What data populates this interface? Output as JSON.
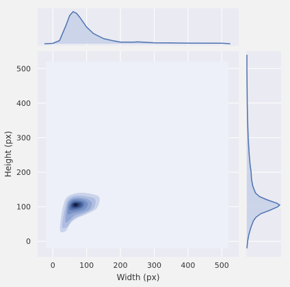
{
  "chart_data": {
    "type": "jointplot-kde",
    "xlabel": "Width (px)",
    "ylabel": "Height (px)",
    "xlim": [
      -45,
      550
    ],
    "ylim": [
      -45,
      550
    ],
    "x_ticks": [
      0,
      100,
      200,
      300,
      400,
      500
    ],
    "y_ticks": [
      0,
      100,
      200,
      300,
      400,
      500
    ],
    "grid": true,
    "colors": {
      "line": "#4c72b0",
      "fill": "#c5d0e7",
      "axes_bg": "#eaeaf2",
      "joint_bg": "#edf0f8",
      "grid": "#ffffff",
      "figure_bg": "#f2f2f2"
    },
    "joint_density": {
      "center": [
        65,
        105
      ],
      "levels": [
        {
          "level": 1,
          "points": [
            [
              22,
              30
            ],
            [
              38,
              30
            ],
            [
              52,
              52
            ],
            [
              70,
              66
            ],
            [
              102,
              80
            ],
            [
              130,
              96
            ],
            [
              138,
              126
            ],
            [
              115,
              137
            ],
            [
              75,
              140
            ],
            [
              42,
              128
            ],
            [
              30,
              100
            ],
            [
              24,
              68
            ]
          ]
        },
        {
          "level": 2,
          "points": [
            [
              28,
              40
            ],
            [
              42,
              42
            ],
            [
              56,
              60
            ],
            [
              74,
              72
            ],
            [
              102,
              84
            ],
            [
              122,
              98
            ],
            [
              125,
              122
            ],
            [
              100,
              130
            ],
            [
              66,
              132
            ],
            [
              44,
              120
            ],
            [
              36,
              95
            ],
            [
              30,
              65
            ]
          ]
        },
        {
          "level": 3,
          "points": [
            [
              38,
              55
            ],
            [
              50,
              62
            ],
            [
              64,
              75
            ],
            [
              85,
              82
            ],
            [
              108,
              92
            ],
            [
              115,
              112
            ],
            [
              96,
              124
            ],
            [
              64,
              126
            ],
            [
              46,
              115
            ],
            [
              40,
              92
            ],
            [
              38,
              72
            ]
          ]
        },
        {
          "level": 4,
          "points": [
            [
              45,
              78
            ],
            [
              58,
              82
            ],
            [
              76,
              86
            ],
            [
              96,
              94
            ],
            [
              104,
              110
            ],
            [
              88,
              121
            ],
            [
              62,
              122
            ],
            [
              48,
              112
            ],
            [
              44,
              96
            ]
          ]
        },
        {
          "level": 5,
          "points": [
            [
              50,
              90
            ],
            [
              64,
              90
            ],
            [
              84,
              95
            ],
            [
              94,
              108
            ],
            [
              82,
              117
            ],
            [
              62,
              118
            ],
            [
              52,
              110
            ],
            [
              48,
              100
            ]
          ]
        },
        {
          "level": 6,
          "points": [
            [
              55,
              95
            ],
            [
              70,
              95
            ],
            [
              86,
              101
            ],
            [
              86,
              112
            ],
            [
              70,
              115
            ],
            [
              58,
              112
            ],
            [
              53,
              104
            ]
          ]
        },
        {
          "level": 7,
          "points": [
            [
              58,
              99
            ],
            [
              72,
              98
            ],
            [
              82,
              104
            ],
            [
              80,
              111
            ],
            [
              68,
              113
            ],
            [
              59,
              110
            ],
            [
              56,
              104
            ]
          ]
        },
        {
          "level": 8,
          "points": [
            [
              61,
              101
            ],
            [
              70,
              100
            ],
            [
              77,
              105
            ],
            [
              74,
              110
            ],
            [
              65,
              111
            ],
            [
              60,
              107
            ]
          ]
        },
        {
          "level": 9,
          "points": [
            [
              63,
              103
            ],
            [
              69,
              102
            ],
            [
              73,
              106
            ],
            [
              70,
              109
            ],
            [
              65,
              109
            ],
            [
              62,
              106
            ]
          ]
        }
      ]
    },
    "marginal_x": {
      "x": [
        -25,
        0,
        20,
        40,
        50,
        60,
        70,
        80,
        100,
        120,
        150,
        180,
        200,
        240,
        250,
        300,
        350,
        400,
        500,
        525
      ],
      "density": [
        0,
        0.01,
        0.1,
        0.6,
        0.88,
        1.0,
        0.95,
        0.82,
        0.52,
        0.32,
        0.16,
        0.09,
        0.05,
        0.05,
        0.06,
        0.03,
        0.025,
        0.02,
        0.015,
        0
      ]
    },
    "marginal_y": {
      "y": [
        -20,
        0,
        20,
        40,
        60,
        70,
        80,
        90,
        100,
        105,
        110,
        120,
        130,
        140,
        160,
        180,
        200,
        220,
        250,
        300,
        350,
        400,
        500,
        540
      ],
      "density": [
        0,
        0.02,
        0.06,
        0.12,
        0.2,
        0.28,
        0.42,
        0.7,
        0.94,
        1.0,
        0.92,
        0.62,
        0.38,
        0.26,
        0.18,
        0.14,
        0.13,
        0.1,
        0.07,
        0.04,
        0.02,
        0.01,
        0,
        0
      ]
    }
  }
}
